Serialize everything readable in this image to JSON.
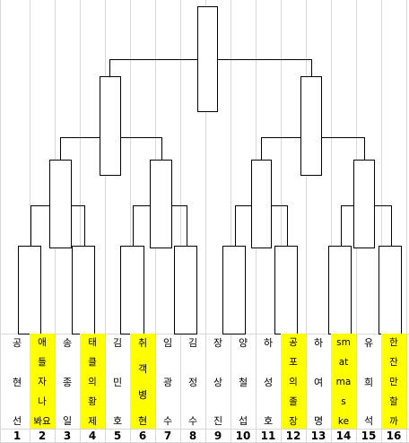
{
  "players": [
    {
      "num": "1",
      "chars": [
        "공",
        "현",
        "선"
      ],
      "highlight": false
    },
    {
      "num": "2",
      "chars": [
        "애",
        "들",
        "자",
        "나",
        "봐요"
      ],
      "highlight": true
    },
    {
      "num": "3",
      "chars": [
        "송",
        "종",
        "일"
      ],
      "highlight": false
    },
    {
      "num": "4",
      "chars": [
        "태",
        "클",
        "의",
        "황",
        "제"
      ],
      "highlight": true
    },
    {
      "num": "5",
      "chars": [
        "김",
        "민",
        "호"
      ],
      "highlight": false
    },
    {
      "num": "6",
      "chars": [
        "취",
        "객",
        "병",
        "현"
      ],
      "highlight": true
    },
    {
      "num": "7",
      "chars": [
        "임",
        "광",
        "수"
      ],
      "highlight": false
    },
    {
      "num": "8",
      "chars": [
        "김",
        "정",
        "수"
      ],
      "highlight": false
    },
    {
      "num": "9",
      "chars": [
        "장",
        "상",
        "진"
      ],
      "highlight": false
    },
    {
      "num": "10",
      "chars": [
        "양",
        "철",
        "섭"
      ],
      "highlight": false
    },
    {
      "num": "11",
      "chars": [
        "하",
        "성",
        "호"
      ],
      "highlight": false
    },
    {
      "num": "12",
      "chars": [
        "공",
        "포",
        "의",
        "졸",
        "장"
      ],
      "highlight": true
    },
    {
      "num": "13",
      "chars": [
        "하",
        "여",
        "명"
      ],
      "highlight": false
    },
    {
      "num": "14",
      "chars": [
        "sm",
        "at",
        "ma",
        "s",
        "ke"
      ],
      "highlight": true
    },
    {
      "num": "15",
      "chars": [
        "유",
        "희",
        "석"
      ],
      "highlight": false
    },
    {
      "num": "16",
      "chars": [
        "한",
        "잔",
        "만",
        "할",
        "까"
      ],
      "highlight": true
    }
  ],
  "colors": {
    "highlight": "#ffff00",
    "grid": "#d8d8d8",
    "line": "#000000"
  }
}
